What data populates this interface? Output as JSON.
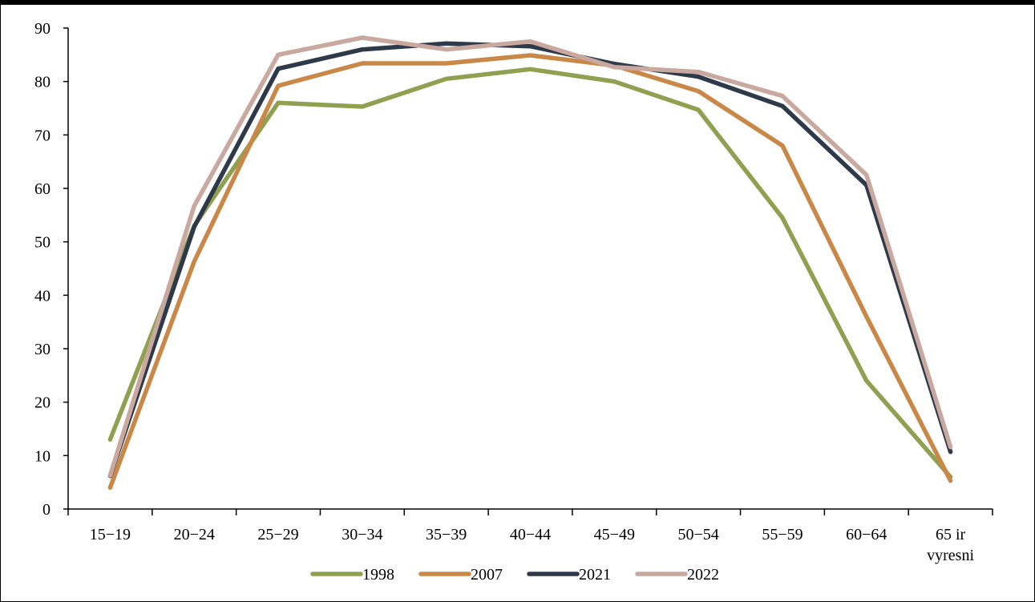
{
  "chart_data": {
    "type": "line",
    "title": "",
    "xlabel": "",
    "ylabel": "",
    "categories": [
      "15−19",
      "20−24",
      "25−29",
      "30−34",
      "35−39",
      "40−44",
      "45−49",
      "50−54",
      "55−59",
      "60−64",
      "65 ir vyresni"
    ],
    "category_lines": [
      [
        "15−19"
      ],
      [
        "20−24"
      ],
      [
        "25−29"
      ],
      [
        "30−34"
      ],
      [
        "35−39"
      ],
      [
        "40−44"
      ],
      [
        "45−49"
      ],
      [
        "50−54"
      ],
      [
        "55−59"
      ],
      [
        "60−64"
      ],
      [
        "65 ir",
        "vyresni"
      ]
    ],
    "ylim": [
      0,
      90
    ],
    "yticks": [
      0,
      10,
      20,
      30,
      40,
      50,
      60,
      70,
      80,
      90
    ],
    "grid": false,
    "legend_position": "bottom",
    "series": [
      {
        "name": "1998",
        "color": "#8fa050",
        "values": [
          13.0,
          53.0,
          76.0,
          75.3,
          80.5,
          82.3,
          80.0,
          74.7,
          54.5,
          24.0,
          6.0
        ]
      },
      {
        "name": "2007",
        "color": "#c98847",
        "values": [
          4.0,
          46.3,
          79.2,
          83.4,
          83.4,
          84.9,
          83.0,
          78.2,
          68.0,
          36.0,
          5.3
        ]
      },
      {
        "name": "2021",
        "color": "#2e3a4a",
        "values": [
          6.2,
          52.8,
          82.4,
          86.0,
          87.1,
          86.6,
          83.3,
          80.9,
          75.4,
          60.6,
          10.7
        ]
      },
      {
        "name": "2022",
        "color": "#c8a89f",
        "values": [
          6.3,
          56.7,
          85.0,
          88.2,
          86.0,
          87.5,
          82.7,
          81.8,
          77.3,
          62.5,
          11.6
        ]
      }
    ]
  }
}
